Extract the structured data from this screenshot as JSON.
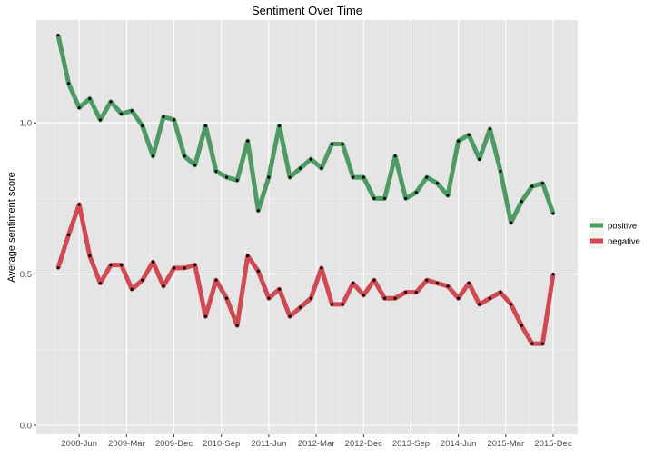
{
  "chart_data": {
    "type": "line",
    "title": "Sentiment Over Time",
    "xlabel": "",
    "ylabel": "Average sentiment score",
    "x_tick_labels": [
      "2008-Jun",
      "2009-Mar",
      "2009-Dec",
      "2010-Sep",
      "2011-Jun",
      "2012-Mar",
      "2012-Dec",
      "2013-Sep",
      "2014-Jun",
      "2015-Mar",
      "2015-Dec"
    ],
    "y_ticks": [
      0.0,
      0.5,
      1.0
    ],
    "y_tick_labels": [
      "0.0",
      "0.5",
      "1.0"
    ],
    "ylim": [
      -0.03,
      1.34
    ],
    "grid": true,
    "legend_position": "right",
    "x": [
      "2008-Feb",
      "2008-Apr",
      "2008-Jun",
      "2008-Aug",
      "2008-Oct",
      "2008-Dec",
      "2009-Feb",
      "2009-Apr",
      "2009-Jun",
      "2009-Aug",
      "2009-Oct",
      "2009-Dec",
      "2010-Feb",
      "2010-Apr",
      "2010-Jun",
      "2010-Aug",
      "2010-Oct",
      "2010-Dec",
      "2011-Feb",
      "2011-Apr",
      "2011-Jun",
      "2011-Aug",
      "2011-Oct",
      "2011-Dec",
      "2012-Feb",
      "2012-Apr",
      "2012-Jun",
      "2012-Aug",
      "2012-Oct",
      "2012-Dec",
      "2013-Feb",
      "2013-Apr",
      "2013-Jun",
      "2013-Aug",
      "2013-Oct",
      "2013-Dec",
      "2014-Feb",
      "2014-Apr",
      "2014-Jun",
      "2014-Aug",
      "2014-Oct",
      "2014-Dec",
      "2015-Feb",
      "2015-Apr",
      "2015-Jun",
      "2015-Aug",
      "2015-Oct",
      "2015-Dec"
    ],
    "series": [
      {
        "name": "positive",
        "color": "#4e9a64",
        "values": [
          1.29,
          1.13,
          1.05,
          1.08,
          1.01,
          1.07,
          1.03,
          1.04,
          0.99,
          0.89,
          1.02,
          1.01,
          0.89,
          0.86,
          0.99,
          0.84,
          0.82,
          0.81,
          0.94,
          0.71,
          0.82,
          0.99,
          0.82,
          0.85,
          0.88,
          0.85,
          0.93,
          0.93,
          0.82,
          0.82,
          0.75,
          0.75,
          0.89,
          0.75,
          0.77,
          0.82,
          0.8,
          0.76,
          0.94,
          0.96,
          0.88,
          0.98,
          0.84,
          0.67,
          0.74,
          0.79,
          0.8,
          0.7
        ]
      },
      {
        "name": "negative",
        "color": "#cf4a52",
        "values": [
          0.52,
          0.63,
          0.73,
          0.56,
          0.47,
          0.53,
          0.53,
          0.45,
          0.48,
          0.54,
          0.46,
          0.52,
          0.52,
          0.53,
          0.36,
          0.48,
          0.42,
          0.33,
          0.56,
          0.51,
          0.42,
          0.45,
          0.36,
          0.39,
          0.42,
          0.52,
          0.4,
          0.4,
          0.47,
          0.43,
          0.48,
          0.42,
          0.42,
          0.44,
          0.44,
          0.48,
          0.47,
          0.46,
          0.42,
          0.47,
          0.4,
          0.42,
          0.44,
          0.4,
          0.33,
          0.27,
          0.27,
          0.5
        ]
      }
    ]
  }
}
